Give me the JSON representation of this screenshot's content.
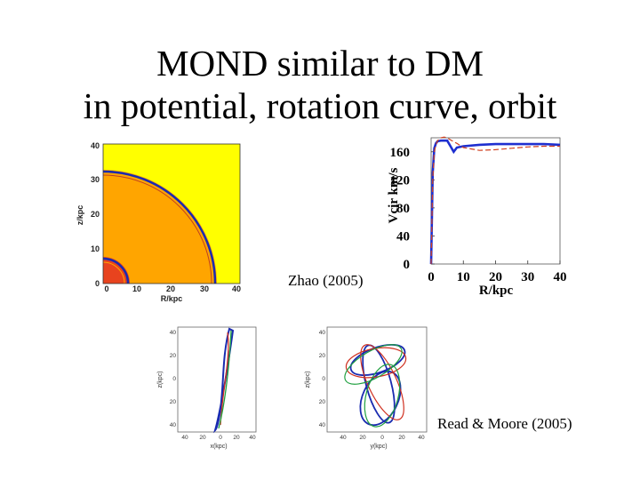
{
  "slide": {
    "title_line1": "MOND similar to DM",
    "title_line2": "in potential, rotation curve, orbit",
    "caption_zhao": "Zhao (2005)",
    "caption_read": "Read & Moore (2005)"
  },
  "potential_map": {
    "xlabel": "R/kpc",
    "ylabel": "z/kpc",
    "xticks": [
      "0",
      "10",
      "20",
      "30",
      "40"
    ],
    "yticks": [
      "0",
      "10",
      "20",
      "30",
      "40"
    ],
    "colors": {
      "background": "#ffff00",
      "outer": "#ffa500",
      "core": "#e8431e",
      "contour": "#1a2bb0"
    }
  },
  "chart_data": {
    "type": "line",
    "xlabel": "R/kpc",
    "ylabel": "Vcir km/s",
    "xticks": [
      "0",
      "10",
      "20",
      "30",
      "40"
    ],
    "yticks": [
      "0",
      "40",
      "80",
      "120",
      "160"
    ],
    "xlim": [
      0,
      40
    ],
    "ylim": [
      0,
      180
    ],
    "series": [
      {
        "color": "#1e2fd0",
        "style": "solid",
        "x": [
          0,
          0.5,
          1,
          1.5,
          2,
          3,
          4,
          5,
          6,
          7,
          8,
          10,
          15,
          20,
          25,
          30,
          35,
          40
        ],
        "y": [
          0,
          130,
          165,
          172,
          175,
          176,
          176,
          176,
          168,
          160,
          166,
          168,
          170,
          171,
          171,
          171,
          171,
          170
        ]
      },
      {
        "color": "#d04020",
        "style": "dashed",
        "x": [
          0,
          0.5,
          1,
          1.5,
          2,
          3,
          4,
          5,
          6,
          8,
          10,
          15,
          20,
          25,
          30,
          35,
          40
        ],
        "y": [
          0,
          120,
          160,
          170,
          176,
          180,
          181,
          180,
          177,
          172,
          166,
          162,
          163,
          165,
          167,
          168,
          168
        ]
      }
    ]
  },
  "orbit_left": {
    "xlabel": "x(kpc)",
    "ylabel": "z(kpc)",
    "xticks": [
      "40",
      "20",
      "0",
      "20",
      "40"
    ],
    "yticks": [
      "40",
      "20",
      "0",
      "20",
      "40"
    ]
  },
  "orbit_right": {
    "xlabel": "y(kpc)",
    "ylabel": "z(kpc)",
    "xticks": [
      "40",
      "20",
      "0",
      "20",
      "40"
    ],
    "yticks": [
      "40",
      "20",
      "0",
      "20",
      "40"
    ]
  }
}
